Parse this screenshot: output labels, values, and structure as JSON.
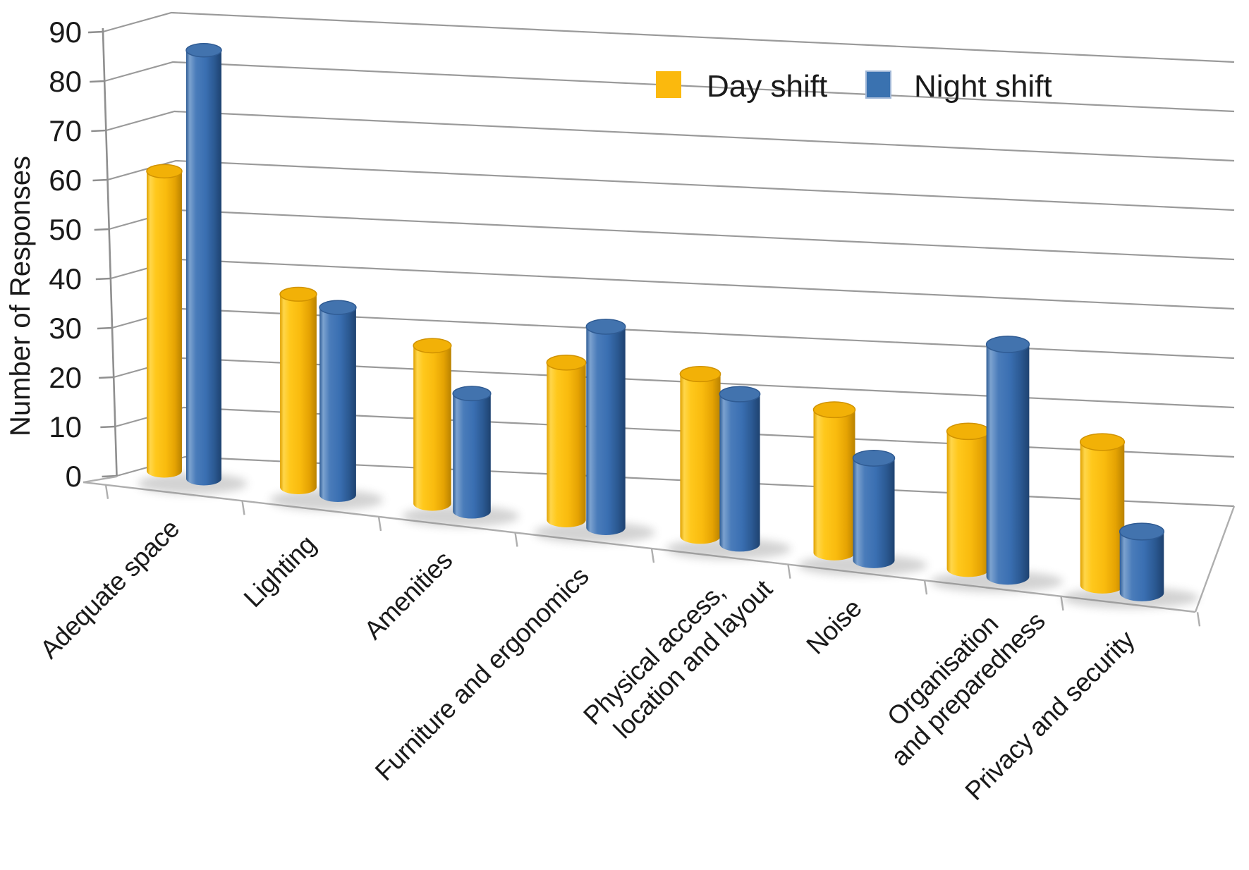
{
  "figure": {
    "background": "#ffffff"
  },
  "chart_data": {
    "type": "bar",
    "subtype": "3d-cylinder",
    "title": "",
    "xlabel": "",
    "ylabel": "Number of Responses",
    "ylim": [
      0,
      90
    ],
    "ytick_step": 10,
    "yticks": [
      "90",
      "80",
      "70",
      "60",
      "50",
      "40",
      "30",
      "20",
      "10",
      "0"
    ],
    "grid": true,
    "legend_position": "top-center",
    "categories": [
      "Adequate space",
      "Lighting",
      "Amenities",
      "Furniture and ergonomics",
      "Physical access,\nlocation and layout",
      "Noise",
      "Organisation\nand preparedness",
      "Privacy and security"
    ],
    "series": [
      {
        "name": "Day shift",
        "color": "#FBB90D",
        "values": [
          55,
          37,
          28,
          23,
          20,
          15,
          10,
          7
        ]
      },
      {
        "name": "Night shift",
        "color": "#3A72B0",
        "values": [
          85,
          36,
          18,
          30,
          17,
          8,
          27,
          3
        ]
      }
    ]
  },
  "colors": {
    "gridline": "#9a9a9a",
    "axis": "#8f8f8f",
    "floor_edge": "#aeaeae",
    "text": "#1a1a1a"
  }
}
